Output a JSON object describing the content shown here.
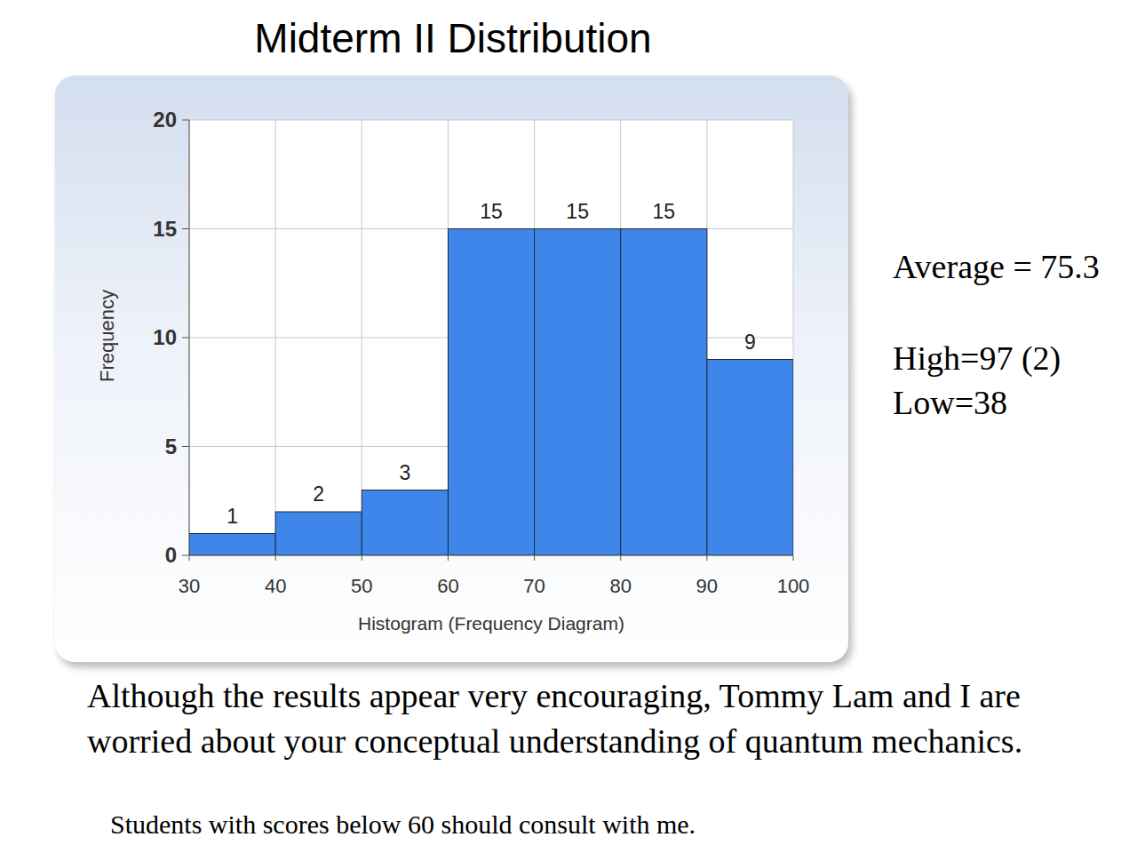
{
  "chart_data": {
    "type": "histogram",
    "title": "Midterm II Distribution",
    "x_label": "Histogram (Frequency Diagram)",
    "y_label": "Frequency",
    "bins": [
      30,
      40,
      50,
      60,
      70,
      80,
      90,
      100
    ],
    "values": [
      1,
      2,
      3,
      15,
      15,
      15,
      9
    ],
    "color": "#3f86ea",
    "xlim": [
      30,
      100
    ],
    "xticks": [
      30,
      40,
      50,
      60,
      70,
      80,
      90,
      100
    ],
    "ylim": [
      0,
      20
    ],
    "yticks": [
      0,
      5,
      10,
      15,
      20
    ],
    "grid": true,
    "data_labels": true,
    "annotations": [
      "Average = 75.3",
      "High=97 (2)",
      "Low=38",
      "Although the results appear very encouraging, Tommy Lam and I are worried about your conceptual understanding of quantum mechanics.",
      "Students with scores below 60 should consult with me."
    ]
  }
}
